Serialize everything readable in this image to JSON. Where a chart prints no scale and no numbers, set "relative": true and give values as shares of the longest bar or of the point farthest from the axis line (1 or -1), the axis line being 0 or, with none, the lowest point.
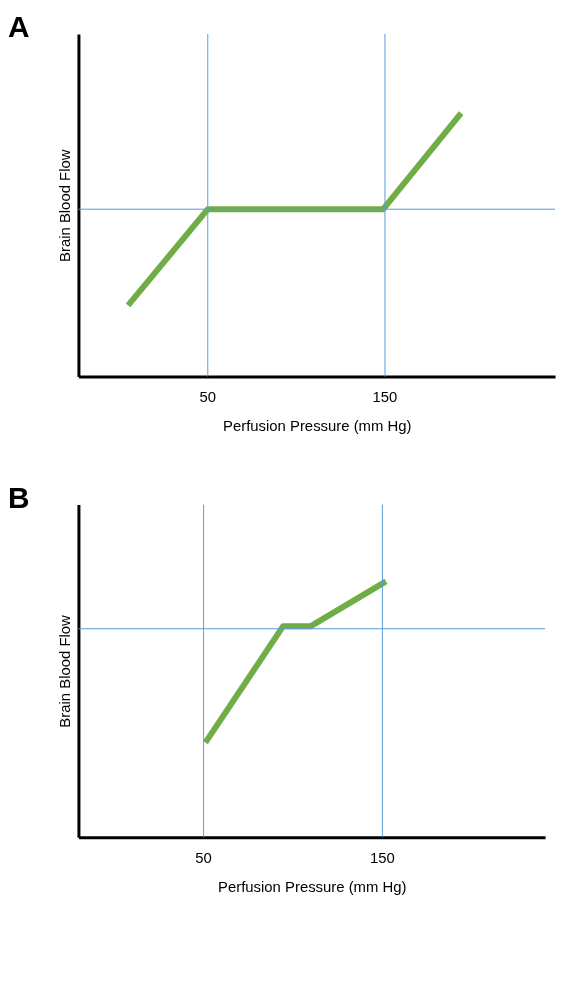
{
  "chart_data": [
    {
      "type": "line",
      "title": "A",
      "xlabel": "Perfusion Pressure (mm Hg)",
      "ylabel": "Brain Blood Flow",
      "relative": true,
      "tick_labels": "x",
      "grid": "x",
      "marker": "none",
      "line_style": "solid",
      "x": [
        5,
        50,
        149,
        193
      ],
      "xlim": [
        -23,
        246
      ],
      "xticks": [
        50,
        150
      ],
      "series": [
        {
          "color": "#70ad47",
          "values": [
            0.27,
            0.635,
            0.635,
            1
          ]
        }
      ],
      "ref_lines": [
        {
          "axis": "y",
          "value": 0.635,
          "color": "#5b9bd5"
        }
      ]
    },
    {
      "type": "line",
      "title": "B",
      "xlabel": "Perfusion Pressure (mm Hg)",
      "ylabel": "Brain Blood Flow",
      "relative": true,
      "tick_labels": "x",
      "grid": "x",
      "marker": "none",
      "line_style": "solid",
      "x": [
        51,
        94.5,
        110,
        152
      ],
      "xlim": [
        -20,
        241
      ],
      "xticks": [
        50,
        150
      ],
      "series": [
        {
          "color": "#70ad47",
          "values": [
            0.37,
            0.825,
            0.825,
            1
          ]
        }
      ],
      "ref_lines": [
        {
          "axis": "y",
          "value": 0.815,
          "color": "#5b9bd5"
        }
      ]
    }
  ]
}
